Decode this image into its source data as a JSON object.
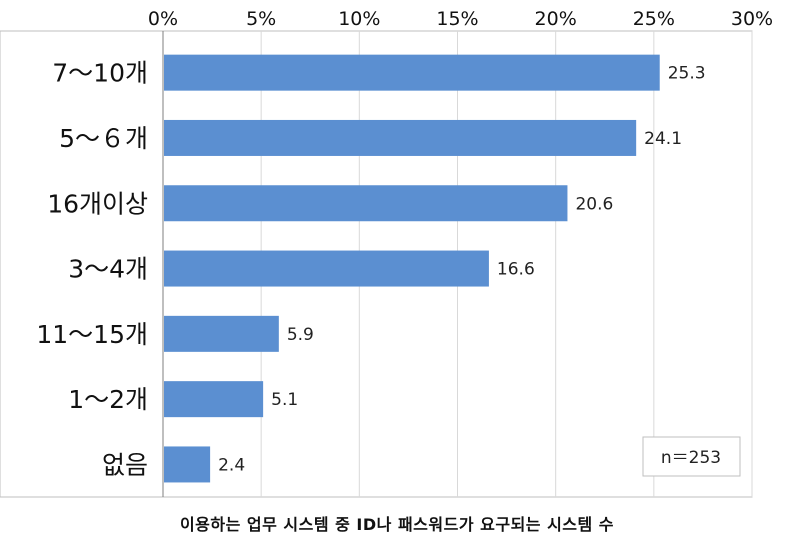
{
  "chart_data": {
    "type": "bar",
    "orientation": "horizontal",
    "categories": [
      "7～10개",
      "5～６개",
      "16개이상",
      "3～4개",
      "11～15개",
      "1～2개",
      "없음"
    ],
    "values": [
      25.3,
      24.1,
      20.6,
      16.6,
      5.9,
      5.1,
      2.4
    ],
    "value_labels": [
      "25.3",
      "24.1",
      "20.6",
      "16.6",
      "5.9",
      "5.1",
      "2.4"
    ],
    "xlim": [
      0,
      30
    ],
    "x_ticks": [
      0,
      5,
      10,
      15,
      20,
      25,
      30
    ],
    "x_tick_labels": [
      "0%",
      "5%",
      "10%",
      "15%",
      "20%",
      "25%",
      "30%"
    ],
    "x_axis_position": "top",
    "grid": true,
    "bar_color": "#5b8fd1",
    "note": "n＝253",
    "title": "이용하는 업무 시스템 중 ID나 패스워드가 요구되는 시스템 수"
  }
}
